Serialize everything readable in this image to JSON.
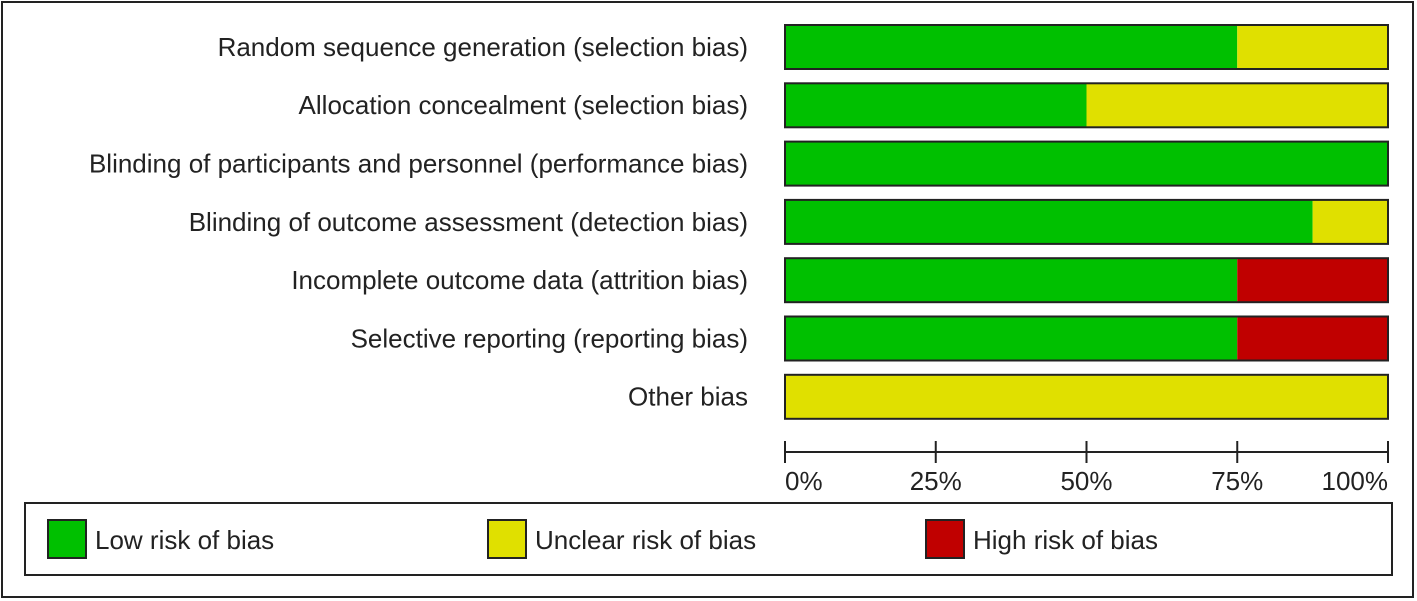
{
  "chart_data": {
    "type": "stacked-bar-horizontal",
    "categories": [
      "Random sequence generation (selection bias)",
      "Allocation concealment (selection bias)",
      "Blinding of participants and personnel (performance bias)",
      "Blinding of outcome assessment (detection bias)",
      "Incomplete outcome data (attrition bias)",
      "Selective reporting (reporting bias)",
      "Other bias"
    ],
    "series": [
      {
        "name": "Low risk of bias",
        "color": "#00c000",
        "values": [
          75,
          50,
          100,
          87.5,
          75,
          75,
          0
        ]
      },
      {
        "name": "Unclear risk of bias",
        "color": "#e0e000",
        "values": [
          25,
          50,
          0,
          12.5,
          0,
          0,
          100
        ]
      },
      {
        "name": "High risk of bias",
        "color": "#c00000",
        "values": [
          0,
          0,
          0,
          0,
          25,
          25,
          0
        ]
      }
    ],
    "xlim": [
      0,
      100
    ],
    "xticks": [
      {
        "value": 0,
        "label": "0%"
      },
      {
        "value": 25,
        "label": "25%"
      },
      {
        "value": 50,
        "label": "50%"
      },
      {
        "value": 75,
        "label": "75%"
      },
      {
        "value": 100,
        "label": "100%"
      }
    ]
  }
}
